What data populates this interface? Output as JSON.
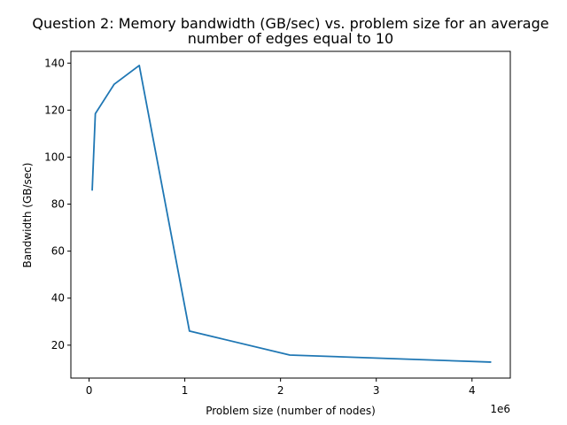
{
  "chart_data": {
    "type": "line",
    "title_lines": [
      "Question 2: Memory bandwidth (GB/sec) vs. problem size for an average",
      "number of edges equal to 10"
    ],
    "xlabel": "Problem size (number of nodes)",
    "ylabel": "Bandwidth (GB/sec)",
    "x_offset_text": "1e6",
    "xlim": [
      -190000,
      4400000
    ],
    "ylim": [
      6,
      145
    ],
    "x_ticks": [
      {
        "value": 0,
        "label": "0"
      },
      {
        "value": 1000000,
        "label": "1"
      },
      {
        "value": 2000000,
        "label": "2"
      },
      {
        "value": 3000000,
        "label": "3"
      },
      {
        "value": 4000000,
        "label": "4"
      }
    ],
    "y_ticks": [
      {
        "value": 20,
        "label": "20"
      },
      {
        "value": 40,
        "label": "40"
      },
      {
        "value": 60,
        "label": "60"
      },
      {
        "value": 80,
        "label": "80"
      },
      {
        "value": 100,
        "label": "100"
      },
      {
        "value": 120,
        "label": "120"
      },
      {
        "value": 140,
        "label": "140"
      }
    ],
    "grid": false,
    "series": [
      {
        "color": "#1f77b4",
        "x": [
          32768,
          65536,
          262144,
          524288,
          1048576,
          2097152,
          4194304
        ],
        "y": [
          86,
          118.5,
          131,
          139,
          26,
          15.8,
          12.8
        ]
      }
    ]
  }
}
